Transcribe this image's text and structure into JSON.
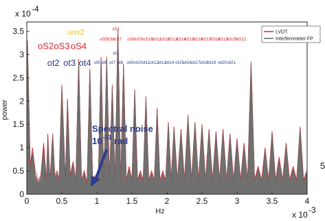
{
  "chart_data": {
    "type": "line",
    "title": "",
    "xlabel": "Hz",
    "ylabel": "power",
    "x_multiplier_label": "x 10",
    "x_multiplier_exp": "-3",
    "y_multiplier_label": "x 10",
    "y_multiplier_exp": "-4",
    "xlim": [
      0,
      4
    ],
    "ylim": [
      0,
      3.7
    ],
    "x_ticks": [
      "0",
      "0.5",
      "1",
      "1.5",
      "2",
      "2.5",
      "3",
      "3.5",
      "4"
    ],
    "y_ticks": [
      "0",
      "0.5",
      "1",
      "1.5",
      "2",
      "2.5",
      "3",
      "3.5"
    ],
    "legend": {
      "position": "top-right",
      "entries": [
        {
          "name": "LVDT",
          "color": "#e0202a"
        },
        {
          "name": "Interferometer FP",
          "color": "#666666"
        }
      ]
    },
    "series": [
      {
        "name": "LVDT",
        "color": "#e0202a",
        "x": [
          0.01,
          0.05,
          0.08,
          0.12,
          0.16,
          0.2,
          0.24,
          0.28,
          0.3,
          0.33,
          0.37,
          0.4,
          0.43,
          0.46,
          0.5,
          0.55,
          0.58,
          0.62,
          0.66,
          0.7,
          0.74,
          0.78,
          0.82,
          0.86,
          0.9,
          0.94,
          0.98,
          1.02,
          1.06,
          1.1,
          1.14,
          1.18,
          1.22,
          1.26,
          1.3,
          1.34,
          1.38,
          1.42,
          1.46,
          1.5,
          1.54,
          1.58,
          1.62,
          1.66,
          1.7,
          1.74,
          1.78,
          1.82,
          1.86,
          1.9,
          1.94,
          1.98,
          2.02,
          2.06,
          2.1,
          2.15,
          2.2,
          2.25,
          2.3,
          2.35,
          2.4,
          2.45,
          2.5,
          2.55,
          2.6,
          2.65,
          2.7,
          2.75,
          2.8,
          2.85,
          2.9,
          2.95,
          3.0,
          3.05,
          3.1,
          3.15,
          3.2,
          3.25,
          3.3,
          3.35,
          3.4,
          3.45,
          3.5,
          3.55,
          3.6,
          3.65,
          3.7,
          3.75,
          3.8,
          3.85,
          3.9,
          3.95,
          3.99
        ],
        "y": [
          3.3,
          0.6,
          1.0,
          0.5,
          0.3,
          0.4,
          1.1,
          0.3,
          1.3,
          0.3,
          1.3,
          0.4,
          0.5,
          0.3,
          2.35,
          0.3,
          2.05,
          0.4,
          0.7,
          0.3,
          2.9,
          0.3,
          0.5,
          0.25,
          2.7,
          0.3,
          0.4,
          0.3,
          2.95,
          0.3,
          2.95,
          0.3,
          2.35,
          0.3,
          3.55,
          0.3,
          2.8,
          0.3,
          0.6,
          0.3,
          2.25,
          0.3,
          0.5,
          0.3,
          2.1,
          0.3,
          0.5,
          0.3,
          1.85,
          0.3,
          0.5,
          0.3,
          1.55,
          0.3,
          1.45,
          0.3,
          1.4,
          0.3,
          1.7,
          0.3,
          1.55,
          0.3,
          1.5,
          0.3,
          1.4,
          0.3,
          1.35,
          0.3,
          1.4,
          0.3,
          1.3,
          0.3,
          1.2,
          0.3,
          1.1,
          0.3,
          2.85,
          0.3,
          0.6,
          0.3,
          1.0,
          0.3,
          1.35,
          0.3,
          0.8,
          0.3,
          1.1,
          0.3,
          0.6,
          0.3,
          1.45,
          0.3,
          0.5
        ]
      },
      {
        "name": "Interferometer FP",
        "color": "#666666",
        "x": [
          0.01,
          0.05,
          0.08,
          0.12,
          0.16,
          0.2,
          0.24,
          0.28,
          0.3,
          0.33,
          0.37,
          0.4,
          0.43,
          0.46,
          0.5,
          0.55,
          0.58,
          0.62,
          0.66,
          0.7,
          0.74,
          0.78,
          0.82,
          0.86,
          0.9,
          0.94,
          0.98,
          1.02,
          1.06,
          1.1,
          1.14,
          1.18,
          1.22,
          1.26,
          1.3,
          1.34,
          1.38,
          1.42,
          1.46,
          1.5,
          1.54,
          1.58,
          1.62,
          1.66,
          1.7,
          1.74,
          1.78,
          1.82,
          1.86,
          1.9,
          1.94,
          1.98,
          2.02,
          2.06,
          2.1,
          2.15,
          2.2,
          2.25,
          2.3,
          2.35,
          2.4,
          2.45,
          2.5,
          2.55,
          2.6,
          2.65,
          2.7,
          2.75,
          2.8,
          2.85,
          2.9,
          2.95,
          3.0,
          3.05,
          3.1,
          3.15,
          3.2,
          3.25,
          3.3,
          3.35,
          3.4,
          3.45,
          3.5,
          3.55,
          3.6,
          3.65,
          3.7,
          3.75,
          3.8,
          3.85,
          3.9,
          3.95,
          3.99
        ],
        "y": [
          3.2,
          0.5,
          0.9,
          0.4,
          0.25,
          0.35,
          1.0,
          0.25,
          1.2,
          0.25,
          1.25,
          0.35,
          0.45,
          0.25,
          2.3,
          0.25,
          2.0,
          0.35,
          0.65,
          0.25,
          2.85,
          0.25,
          0.45,
          0.2,
          2.65,
          0.25,
          0.35,
          0.25,
          2.9,
          0.25,
          2.9,
          0.25,
          2.3,
          0.25,
          3.5,
          0.25,
          2.75,
          0.25,
          0.55,
          0.25,
          2.2,
          0.25,
          0.45,
          0.25,
          2.05,
          0.25,
          0.45,
          0.25,
          1.8,
          0.25,
          0.45,
          0.25,
          1.5,
          0.25,
          1.4,
          0.25,
          1.35,
          0.25,
          1.65,
          0.25,
          1.5,
          0.25,
          1.45,
          0.25,
          1.35,
          0.25,
          1.3,
          0.25,
          1.35,
          0.25,
          1.25,
          0.25,
          1.15,
          0.25,
          1.05,
          0.25,
          2.8,
          0.25,
          0.55,
          0.25,
          0.95,
          0.25,
          1.3,
          0.25,
          0.75,
          0.25,
          1.05,
          0.25,
          0.55,
          0.25,
          1.4,
          0.25,
          0.45
        ]
      }
    ],
    "annotations": {
      "row1_large": [
        {
          "text": "oS2",
          "x": 0.27,
          "color": "#e0202a"
        },
        {
          "text": "oS3",
          "x": 0.5,
          "color": "#e0202a"
        },
        {
          "text": "oS4",
          "x": 0.74,
          "color": "#e0202a"
        }
      ],
      "row1_small": [
        {
          "text": "oS5",
          "x": 1.1
        },
        {
          "text": "oS6",
          "x": 1.2
        },
        {
          "text": "oS7",
          "x": 1.3
        },
        {
          "text": "oS8",
          "x": 1.49
        },
        {
          "text": "oS9",
          "x": 1.6
        },
        {
          "text": "oS10",
          "x": 1.73
        },
        {
          "text": "oS11",
          "x": 1.85
        },
        {
          "text": "oS12",
          "x": 1.97
        },
        {
          "text": "oS13",
          "x": 2.08
        },
        {
          "text": "oS14",
          "x": 2.2
        },
        {
          "text": "oS15",
          "x": 2.32
        },
        {
          "text": "oS16",
          "x": 2.44
        },
        {
          "text": "oS17",
          "x": 2.56
        },
        {
          "text": "oS18",
          "x": 2.68
        },
        {
          "text": "oS19",
          "x": 2.8
        },
        {
          "text": "oS20",
          "x": 2.93
        },
        {
          "text": "oS21",
          "x": 3.06
        }
      ],
      "row2_large": [
        {
          "text": "ot2",
          "x": 0.38,
          "color": "#2b3a8f"
        },
        {
          "text": "ot3",
          "x": 0.61,
          "color": "#2b3a8f"
        },
        {
          "text": "ot4",
          "x": 0.83,
          "color": "#2b3a8f"
        }
      ],
      "row2_small": [
        {
          "text": "ot5",
          "x": 1.0
        },
        {
          "text": "ot6",
          "x": 1.1
        },
        {
          "text": "ot7",
          "x": 1.22
        },
        {
          "text": "ot8",
          "x": 1.33
        },
        {
          "text": "ot9",
          "x": 1.47
        },
        {
          "text": "ot10",
          "x": 1.58
        },
        {
          "text": "ot11",
          "x": 1.7
        },
        {
          "text": "ot12",
          "x": 1.82
        },
        {
          "text": "ot13",
          "x": 1.93
        },
        {
          "text": "ot14",
          "x": 2.04
        },
        {
          "text": "ot15",
          "x": 2.18
        },
        {
          "text": "ot16",
          "x": 2.29
        },
        {
          "text": "ot17",
          "x": 2.41
        },
        {
          "text": "ot18",
          "x": 2.53
        },
        {
          "text": "ot19",
          "x": 2.64
        },
        {
          "text": "ot20",
          "x": 2.79
        },
        {
          "text": "ot21",
          "x": 2.92
        }
      ],
      "yellow_labels": [
        {
          "text": "uns2",
          "x": 0.7
        }
      ],
      "ot1_label": {
        "text": "ot1",
        "x": 1.27
      },
      "os1_label": {
        "text": "oS1",
        "x": 1.27
      },
      "noise_line1": "Spectral noise",
      "noise_line2_base": "10",
      "noise_line2_exp": "-11",
      "noise_line2_unit": "rad"
    },
    "grid": false
  }
}
